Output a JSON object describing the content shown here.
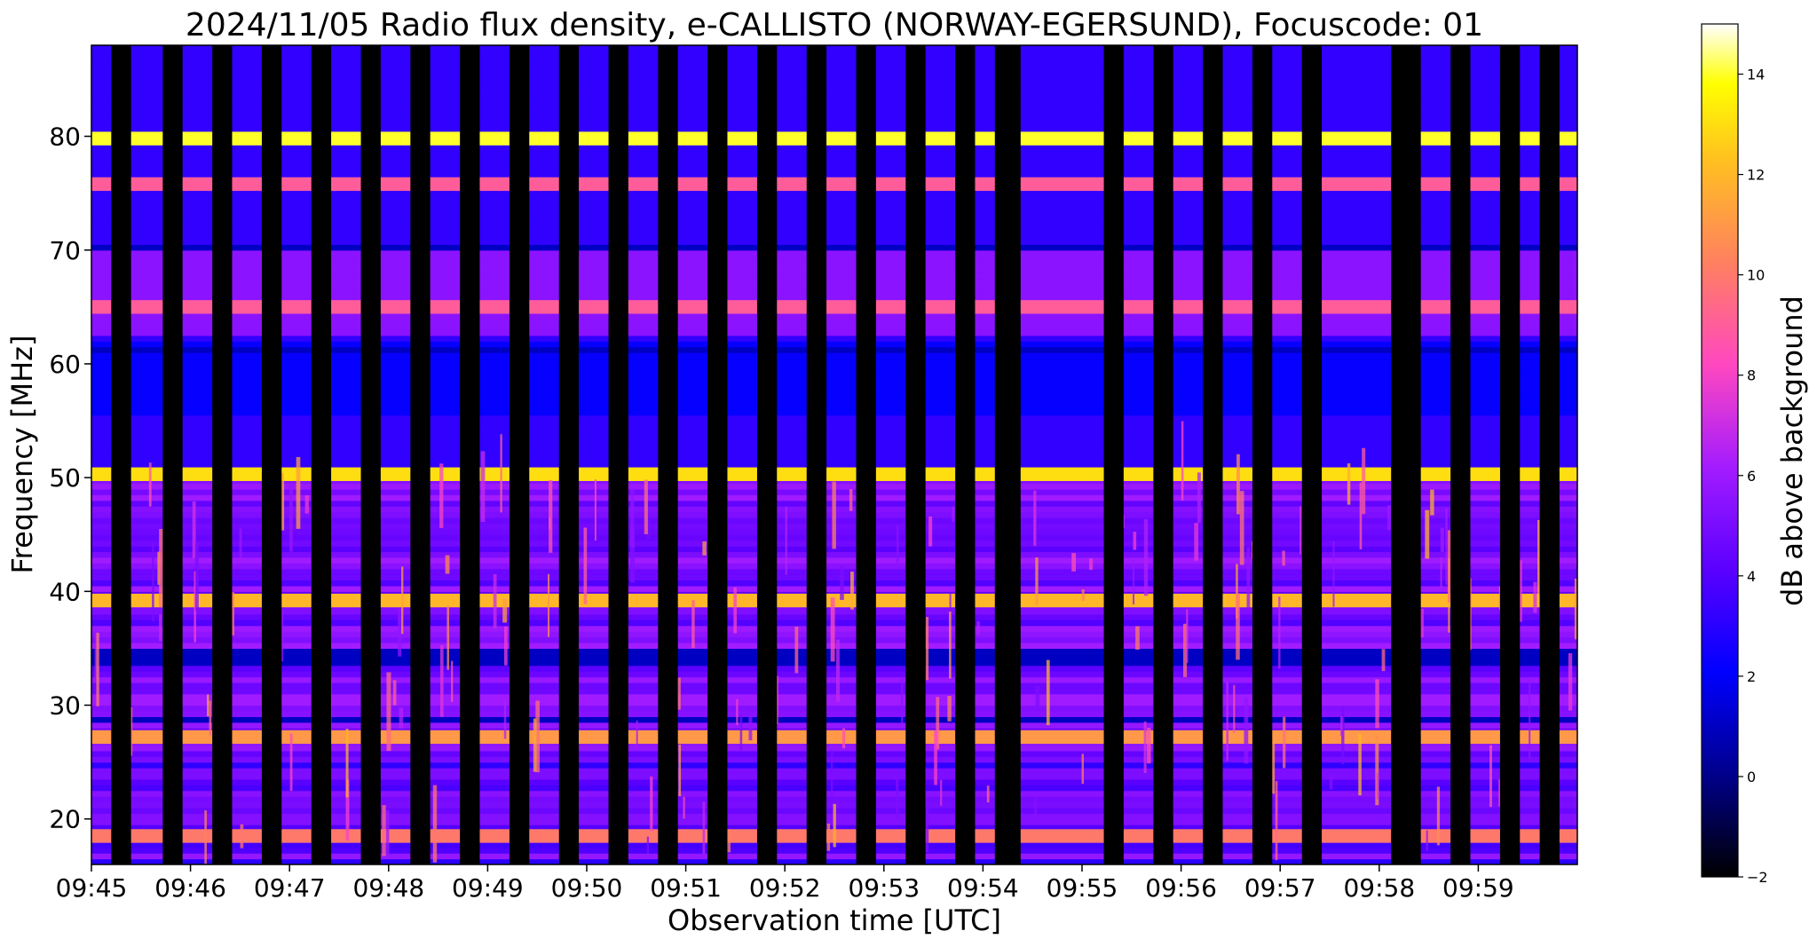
{
  "chart_data": {
    "type": "heatmap",
    "title": "2024/11/05  Radio flux density, e-CALLISTO (NORWAY-EGERSUND), Focuscode: 01",
    "xlabel": "Observation time [UTC]",
    "ylabel": "Frequency [MHz]",
    "x_tick_labels": [
      "09:45",
      "09:46",
      "09:47",
      "09:48",
      "09:49",
      "09:50",
      "09:51",
      "09:52",
      "09:53",
      "09:54",
      "09:55",
      "09:56",
      "09:57",
      "09:58",
      "09:59"
    ],
    "x_range_minutes": [
      0,
      15
    ],
    "y_ticks": [
      20,
      30,
      40,
      50,
      60,
      70,
      80
    ],
    "ylim": [
      16,
      88
    ],
    "colorbar": {
      "label": "dB above background",
      "ticks": [
        -2,
        0,
        2,
        4,
        6,
        8,
        10,
        12,
        14
      ],
      "range": [
        -2,
        15
      ],
      "colormap": "gnuplot2"
    },
    "bright_bands_mhz": [
      {
        "freq": 79.8,
        "level": 14
      },
      {
        "freq": 75.8,
        "level": 9
      },
      {
        "freq": 65.0,
        "level": 9
      },
      {
        "freq": 50.3,
        "level": 13
      },
      {
        "freq": 39.2,
        "level": 12
      },
      {
        "freq": 27.2,
        "level": 11
      },
      {
        "freq": 18.5,
        "level": 10
      }
    ],
    "dark_gaps_minutes": [
      [
        0.2,
        0.4
      ],
      [
        0.72,
        0.92
      ],
      [
        1.22,
        1.42
      ],
      [
        1.72,
        1.92
      ],
      [
        2.22,
        2.42
      ],
      [
        2.72,
        2.92
      ],
      [
        3.22,
        3.42
      ],
      [
        3.72,
        3.92
      ],
      [
        4.22,
        4.42
      ],
      [
        4.72,
        4.92
      ],
      [
        5.22,
        5.42
      ],
      [
        5.72,
        5.92
      ],
      [
        6.22,
        6.42
      ],
      [
        6.72,
        6.92
      ],
      [
        7.22,
        7.42
      ],
      [
        7.72,
        7.92
      ],
      [
        8.22,
        8.42
      ],
      [
        8.72,
        8.92
      ],
      [
        9.12,
        9.38
      ],
      [
        10.22,
        10.42
      ],
      [
        10.72,
        10.92
      ],
      [
        11.22,
        11.42
      ],
      [
        11.72,
        11.92
      ],
      [
        12.22,
        12.42
      ],
      [
        13.12,
        13.42
      ],
      [
        13.72,
        13.92
      ],
      [
        14.22,
        14.42
      ],
      [
        14.62,
        14.82
      ]
    ]
  }
}
